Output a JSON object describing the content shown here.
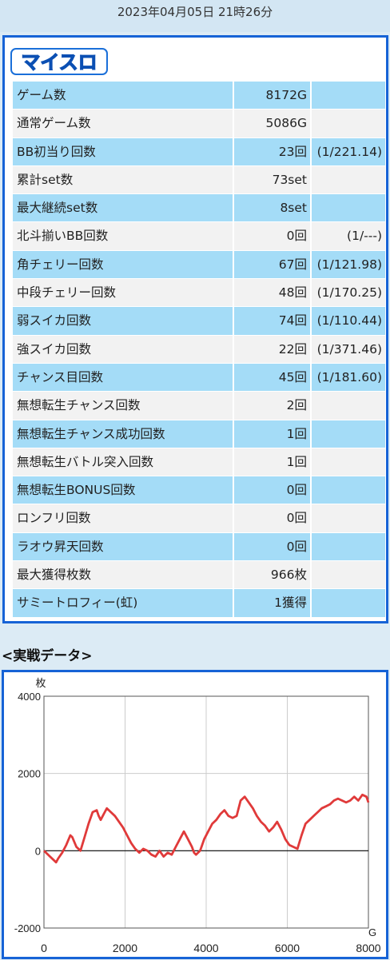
{
  "header": {
    "datetime": "2023年04月05日 21時26分"
  },
  "logo": {
    "text": "マイスロ"
  },
  "stats": [
    {
      "label": "ゲーム数",
      "value": "8172G",
      "rate": ""
    },
    {
      "label": "通常ゲーム数",
      "value": "5086G",
      "rate": ""
    },
    {
      "label": "BB初当り回数",
      "value": "23回",
      "rate": "(1/221.14)"
    },
    {
      "label": "累計set数",
      "value": "73set",
      "rate": ""
    },
    {
      "label": "最大継続set数",
      "value": "8set",
      "rate": ""
    },
    {
      "label": "北斗揃いBB回数",
      "value": "0回",
      "rate": "(1/---)"
    },
    {
      "label": "角チェリー回数",
      "value": "67回",
      "rate": "(1/121.98)"
    },
    {
      "label": "中段チェリー回数",
      "value": "48回",
      "rate": "(1/170.25)"
    },
    {
      "label": "弱スイカ回数",
      "value": "74回",
      "rate": "(1/110.44)"
    },
    {
      "label": "強スイカ回数",
      "value": "22回",
      "rate": "(1/371.46)"
    },
    {
      "label": "チャンス目回数",
      "value": "45回",
      "rate": "(1/181.60)"
    },
    {
      "label": "無想転生チャンス回数",
      "value": "2回",
      "rate": ""
    },
    {
      "label": "無想転生チャンス成功回数",
      "value": "1回",
      "rate": ""
    },
    {
      "label": "無想転生バトル突入回数",
      "value": "1回",
      "rate": ""
    },
    {
      "label": "無想転生BONUS回数",
      "value": "0回",
      "rate": ""
    },
    {
      "label": "ロンフリ回数",
      "value": "0回",
      "rate": ""
    },
    {
      "label": "ラオウ昇天回数",
      "value": "0回",
      "rate": ""
    },
    {
      "label": "最大獲得枚数",
      "value": "966枚",
      "rate": ""
    },
    {
      "label": "サミートロフィー(虹)",
      "value": "1獲得",
      "rate": ""
    }
  ],
  "section": {
    "title": "<実戦データ>"
  },
  "chart_data": {
    "type": "line",
    "ylabel": "枚",
    "xlabel": "G",
    "xlim": [
      0,
      8000
    ],
    "ylim": [
      -2000,
      4000
    ],
    "xticks": [
      "0",
      "2000",
      "4000",
      "6000",
      "8000"
    ],
    "yticks": [
      "4000",
      "2000",
      "0",
      "-2000"
    ],
    "grid": true,
    "line_color": "#e03a3a",
    "series": [
      {
        "x": [
          0,
          150,
          300,
          350,
          450,
          550,
          650,
          700,
          800,
          900,
          1000,
          1100,
          1200,
          1300,
          1350,
          1400,
          1500,
          1550,
          1650,
          1750,
          1850,
          1950,
          2050,
          2150,
          2250,
          2350,
          2450,
          2550,
          2650,
          2750,
          2850,
          2950,
          3050,
          3150,
          3250,
          3350,
          3450,
          3550,
          3650,
          3700,
          3750,
          3850,
          3950,
          4050,
          4150,
          4250,
          4350,
          4450,
          4550,
          4650,
          4750,
          4850,
          4950,
          5050,
          5150,
          5250,
          5350,
          5450,
          5550,
          5650,
          5750,
          5850,
          5950,
          6050,
          6150,
          6250,
          6350,
          6450,
          6550,
          6650,
          6750,
          6850,
          6950,
          7050,
          7150,
          7250,
          7350,
          7450,
          7550,
          7650,
          7750,
          7850,
          7950,
          8000
        ],
        "y": [
          0,
          -150,
          -300,
          -200,
          -50,
          150,
          400,
          350,
          100,
          0,
          350,
          700,
          1000,
          1050,
          900,
          800,
          1000,
          1100,
          1000,
          900,
          750,
          600,
          400,
          200,
          50,
          -50,
          50,
          0,
          -100,
          -150,
          0,
          -150,
          -50,
          -100,
          100,
          300,
          500,
          300,
          100,
          -50,
          -100,
          0,
          300,
          500,
          700,
          800,
          950,
          1050,
          900,
          850,
          900,
          1300,
          1400,
          1250,
          1100,
          900,
          750,
          650,
          500,
          600,
          750,
          550,
          300,
          150,
          100,
          50,
          400,
          700,
          800,
          900,
          1000,
          1100,
          1150,
          1200,
          1300,
          1350,
          1300,
          1250,
          1300,
          1400,
          1300,
          1450,
          1400,
          1250
        ]
      }
    ]
  }
}
